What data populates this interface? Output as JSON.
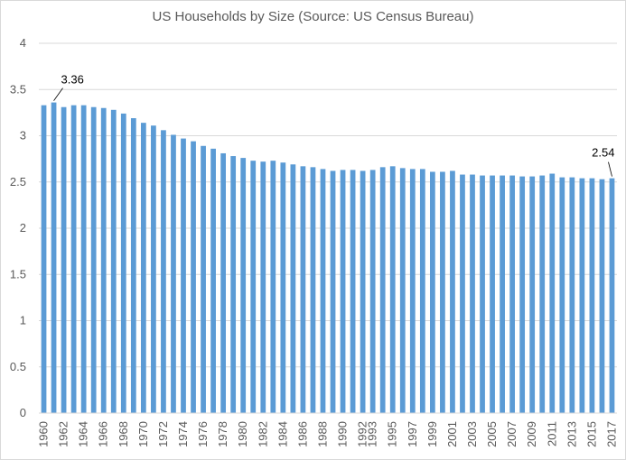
{
  "chart_data": {
    "type": "bar",
    "title": "US Households by Size (Source: US Census Bureau)",
    "xlabel": "",
    "ylabel": "",
    "ylim": [
      0,
      4
    ],
    "yticks": [
      "0",
      "0.5",
      "1",
      "1.5",
      "2",
      "2.5",
      "3",
      "3.5",
      "4"
    ],
    "ytick_values": [
      0,
      0.5,
      1,
      1.5,
      2,
      2.5,
      3,
      3.5,
      4
    ],
    "grid": true,
    "legend": "none",
    "bar_color": "#5b9bd5",
    "grid_color": "#d9d9d9",
    "categories": [
      "1960",
      "1961",
      "1962",
      "1963",
      "1964",
      "1965",
      "1966",
      "1967",
      "1968",
      "1969",
      "1970",
      "1971",
      "1972",
      "1973",
      "1974",
      "1975",
      "1976",
      "1977",
      "1978",
      "1979",
      "1980",
      "1981",
      "1982",
      "1983",
      "1984",
      "1985",
      "1986",
      "1987",
      "1988",
      "1989",
      "1990",
      "1991",
      "1992",
      "1993",
      "1994",
      "1995",
      "1996",
      "1997",
      "1998",
      "1999",
      "2000",
      "2001",
      "2002",
      "2003",
      "2004",
      "2005",
      "2006",
      "2007",
      "2008",
      "2009",
      "2010",
      "2011",
      "2012",
      "2013",
      "2014",
      "2015",
      "2016",
      "2017"
    ],
    "x_tick_labels": [
      "1960",
      "1962",
      "1964",
      "1966",
      "1968",
      "1970",
      "1972",
      "1974",
      "1976",
      "1978",
      "1980",
      "1982",
      "1984",
      "1986",
      "1988",
      "1990",
      "1992",
      "1993",
      "1995",
      "1997",
      "1999",
      "2001",
      "2003",
      "2005",
      "2007",
      "2009",
      "2011",
      "2013",
      "2015",
      "2017"
    ],
    "values": [
      3.33,
      3.36,
      3.31,
      3.33,
      3.33,
      3.31,
      3.3,
      3.28,
      3.24,
      3.19,
      3.14,
      3.11,
      3.06,
      3.01,
      2.97,
      2.94,
      2.89,
      2.86,
      2.81,
      2.78,
      2.76,
      2.73,
      2.72,
      2.73,
      2.71,
      2.69,
      2.67,
      2.66,
      2.64,
      2.62,
      2.63,
      2.63,
      2.62,
      2.63,
      2.66,
      2.67,
      2.65,
      2.64,
      2.64,
      2.61,
      2.61,
      2.62,
      2.58,
      2.58,
      2.57,
      2.57,
      2.57,
      2.57,
      2.56,
      2.56,
      2.57,
      2.59,
      2.55,
      2.55,
      2.54,
      2.54,
      2.53,
      2.54
    ],
    "annotations": [
      {
        "label": "3.36",
        "category": "1961"
      },
      {
        "label": "2.54",
        "category": "2017"
      }
    ]
  }
}
